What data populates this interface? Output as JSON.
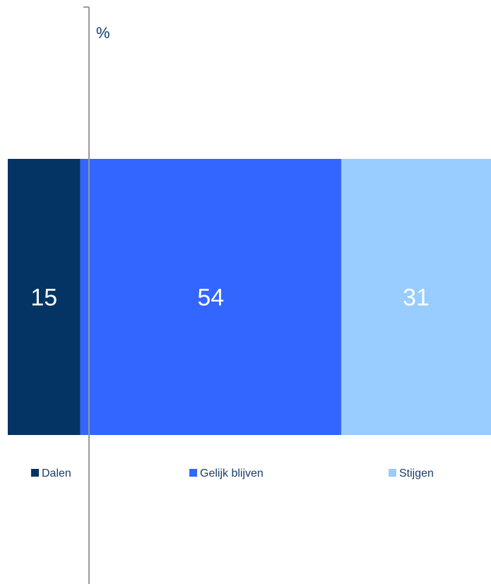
{
  "chart_data": {
    "type": "bar",
    "orientation": "horizontal-stacked",
    "unit_label": "%",
    "categories": [
      ""
    ],
    "series": [
      {
        "name": "Dalen",
        "values": [
          15
        ],
        "color": "#033463"
      },
      {
        "name": "Gelijk blijven",
        "values": [
          54
        ],
        "color": "#3366ff"
      },
      {
        "name": "Stijgen",
        "values": [
          31
        ],
        "color": "#99ccff"
      }
    ],
    "xlim": [
      0,
      100
    ],
    "grid": false,
    "legend_position": "bottom",
    "axis_color": "#999999"
  }
}
